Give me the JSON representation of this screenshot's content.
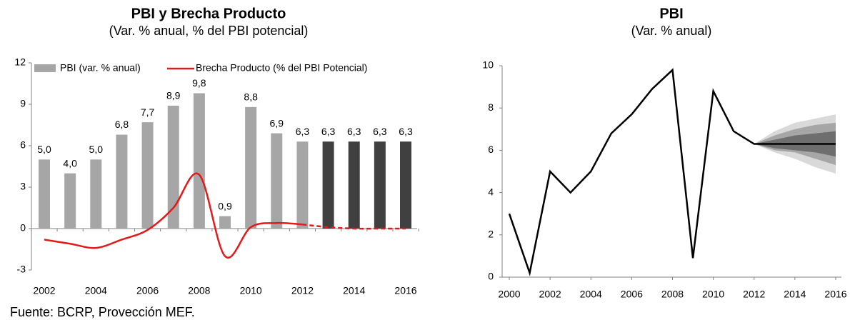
{
  "chart_data": [
    {
      "type": "bar-line",
      "title": "PBI y Brecha Producto",
      "subtitle": "(Var. % anual, % del PBI potencial)",
      "categories": [
        "2002",
        null,
        "2004",
        null,
        "2006",
        null,
        "2008",
        null,
        "2010",
        null,
        "2012",
        null,
        "2014",
        null,
        "2016"
      ],
      "bars": {
        "name": "PBI (var. % anual)",
        "values": [
          5.0,
          4.0,
          5.0,
          6.8,
          7.7,
          8.9,
          9.8,
          0.9,
          8.8,
          6.9,
          6.3,
          6.3,
          6.3,
          6.3,
          6.3
        ],
        "value_labels": [
          "5,0",
          "4,0",
          "5,0",
          "6,8",
          "7,7",
          "8,9",
          "9,8",
          "0,9",
          "8,8",
          "6,9",
          "6,3",
          "6,3",
          "6,3",
          "6,3",
          "6,3"
        ],
        "colors": [
          "#a6a6a6",
          "#a6a6a6",
          "#a6a6a6",
          "#a6a6a6",
          "#a6a6a6",
          "#a6a6a6",
          "#a6a6a6",
          "#a6a6a6",
          "#a6a6a6",
          "#a6a6a6",
          "#a6a6a6",
          "#404040",
          "#404040",
          "#404040",
          "#404040"
        ]
      },
      "line": {
        "name": "Brecha Producto (% del PBI Potencial)",
        "color": "#e31a1c",
        "values": [
          -0.8,
          -1.1,
          -1.4,
          -0.8,
          -0.1,
          1.5,
          3.9,
          -2.0,
          0.1,
          0.4,
          0.3,
          0.1,
          0.0,
          0.0,
          0.0
        ],
        "dashed_from_index": 10
      },
      "ylim": [
        -3,
        12
      ],
      "yticks": [
        -3,
        0,
        3,
        6,
        9,
        12
      ],
      "legend": "top"
    },
    {
      "type": "fan-line",
      "title": "PBI",
      "subtitle": "(Var. % anual)",
      "x": [
        2000,
        2001,
        2002,
        2003,
        2004,
        2005,
        2006,
        2007,
        2008,
        2009,
        2010,
        2011,
        2012,
        2013,
        2014,
        2015,
        2016
      ],
      "values": [
        3.0,
        0.2,
        5.0,
        4.0,
        5.0,
        6.8,
        7.7,
        8.9,
        9.8,
        0.9,
        8.8,
        6.9,
        6.3,
        6.3,
        6.3,
        6.3,
        6.3
      ],
      "color": "#000000",
      "bands": {
        "x": [
          2012,
          2013,
          2014,
          2015,
          2016
        ],
        "series": [
          {
            "color": "#d9d9d9",
            "lower": [
              6.3,
              5.9,
              5.6,
              5.2,
              4.9
            ],
            "upper": [
              6.3,
              6.9,
              7.3,
              7.5,
              7.7
            ]
          },
          {
            "color": "#a6a6a6",
            "lower": [
              6.3,
              6.0,
              5.9,
              5.6,
              5.3
            ],
            "upper": [
              6.3,
              6.7,
              7.0,
              7.2,
              7.3
            ]
          },
          {
            "color": "#6e6e6e",
            "lower": [
              6.3,
              6.1,
              6.0,
              5.9,
              5.7
            ],
            "upper": [
              6.3,
              6.5,
              6.7,
              6.8,
              6.9
            ]
          }
        ]
      },
      "xlim": [
        2000,
        2016
      ],
      "xticks": [
        2000,
        2002,
        2004,
        2006,
        2008,
        2010,
        2012,
        2014,
        2016
      ],
      "ylim": [
        0,
        10
      ],
      "yticks": [
        0,
        2,
        4,
        6,
        8,
        10
      ]
    }
  ],
  "footer": {
    "text": "Fuente: BCRP, Provección MEF."
  }
}
